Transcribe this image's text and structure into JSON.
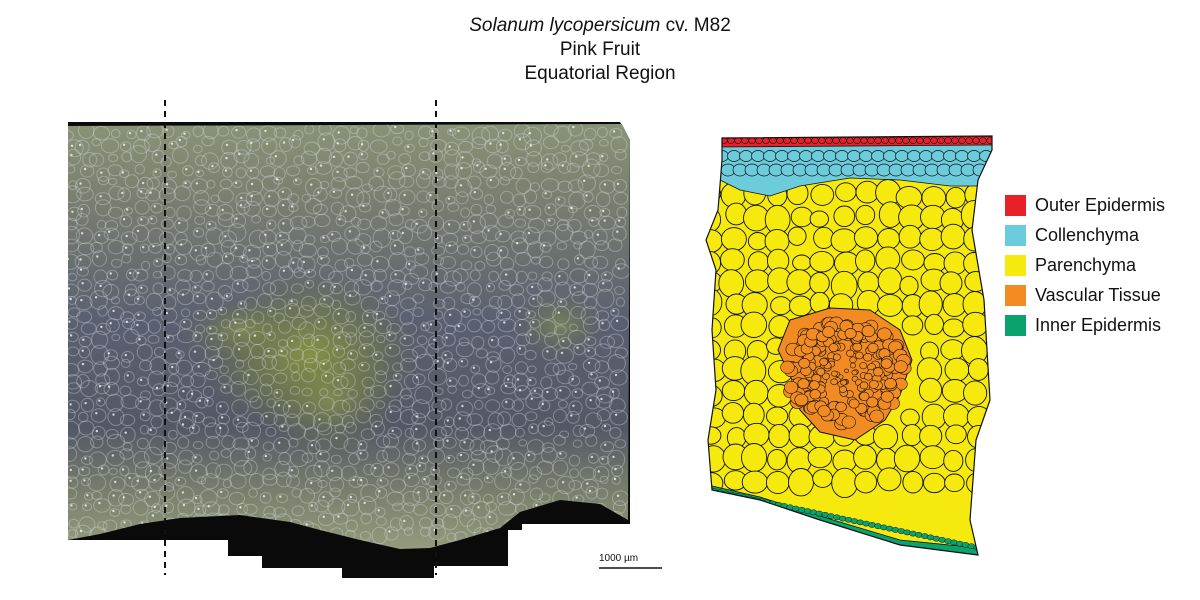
{
  "title": {
    "species": "Solanum lycopersicum",
    "cultivar": "cv. M82",
    "stage": "Pink Fruit",
    "region": "Equatorial Region"
  },
  "scale_bar": {
    "label": "1000 µm"
  },
  "legend": {
    "items": [
      {
        "label": "Outer Epidermis",
        "color": "#e8202a"
      },
      {
        "label": "Collenchyma",
        "color": "#6cccdc"
      },
      {
        "label": "Parenchyma",
        "color": "#f5e90e"
      },
      {
        "label": "Vascular Tissue",
        "color": "#f28c22"
      },
      {
        "label": "Inner Epidermis",
        "color": "#0aa36e"
      }
    ]
  }
}
